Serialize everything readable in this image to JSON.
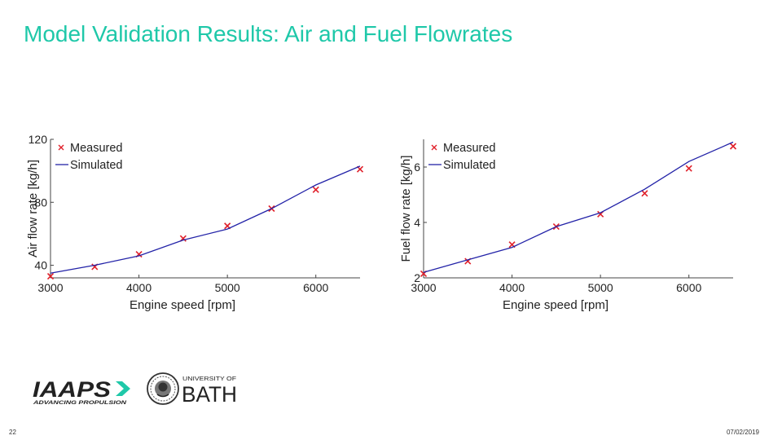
{
  "slide": {
    "title": "Model Validation Results: Air and Fuel Flowrates",
    "page_number": "22",
    "date": "07/02/2019",
    "accent_color": "#1fc8a9"
  },
  "logos": {
    "iraps_text": "IAAPS",
    "iraps_tagline": "ADVANCING PROPULSION",
    "bath_line1": "UNIVERSITY OF",
    "bath_line2": "BATH"
  },
  "chart_data": [
    {
      "type": "line",
      "id": "air",
      "title": "",
      "xlabel": "Engine speed [rpm]",
      "ylabel": "Air flow rate [kg/h]",
      "xlim": [
        3000,
        6500
      ],
      "ylim": [
        32,
        120
      ],
      "xticks": [
        3000,
        4000,
        5000,
        6000
      ],
      "yticks": [
        40,
        80,
        120
      ],
      "legend": {
        "position": "top-left",
        "entries": [
          "Measured",
          "Simulated"
        ]
      },
      "series": [
        {
          "name": "Measured",
          "marker": "x",
          "color": "#e0202a",
          "x": [
            3000,
            3500,
            4000,
            4500,
            5000,
            5500,
            6000,
            6500
          ],
          "y": [
            33,
            39,
            47,
            57,
            65,
            76,
            88,
            101
          ]
        },
        {
          "name": "Simulated",
          "marker": "none",
          "color": "#2323a8",
          "x": [
            3000,
            3500,
            4000,
            4500,
            5000,
            5500,
            6000,
            6500
          ],
          "y": [
            35,
            40,
            46,
            56,
            63,
            76,
            91,
            103
          ]
        }
      ]
    },
    {
      "type": "line",
      "id": "fuel",
      "title": "",
      "xlabel": "Engine speed [rpm]",
      "ylabel": "Fuel flow rate [kg/h]",
      "xlim": [
        3000,
        6500
      ],
      "ylim": [
        2,
        7
      ],
      "xticks": [
        3000,
        4000,
        5000,
        6000
      ],
      "yticks": [
        2,
        4,
        6
      ],
      "ytick_labels": [
        "2",
        "4",
        "6"
      ],
      "legend": {
        "position": "top-left",
        "entries": [
          "Measured",
          "Simulated"
        ]
      },
      "series": [
        {
          "name": "Measured",
          "marker": "x",
          "color": "#e0202a",
          "x": [
            3000,
            3500,
            4000,
            4500,
            5000,
            5500,
            6000,
            6500
          ],
          "y": [
            2.15,
            2.6,
            3.2,
            3.85,
            4.3,
            5.05,
            5.95,
            6.75
          ]
        },
        {
          "name": "Simulated",
          "marker": "none",
          "color": "#2323a8",
          "x": [
            3000,
            3500,
            4000,
            4500,
            5000,
            5500,
            6000,
            6500
          ],
          "y": [
            2.2,
            2.65,
            3.1,
            3.85,
            4.35,
            5.2,
            6.2,
            6.9
          ]
        }
      ]
    }
  ]
}
